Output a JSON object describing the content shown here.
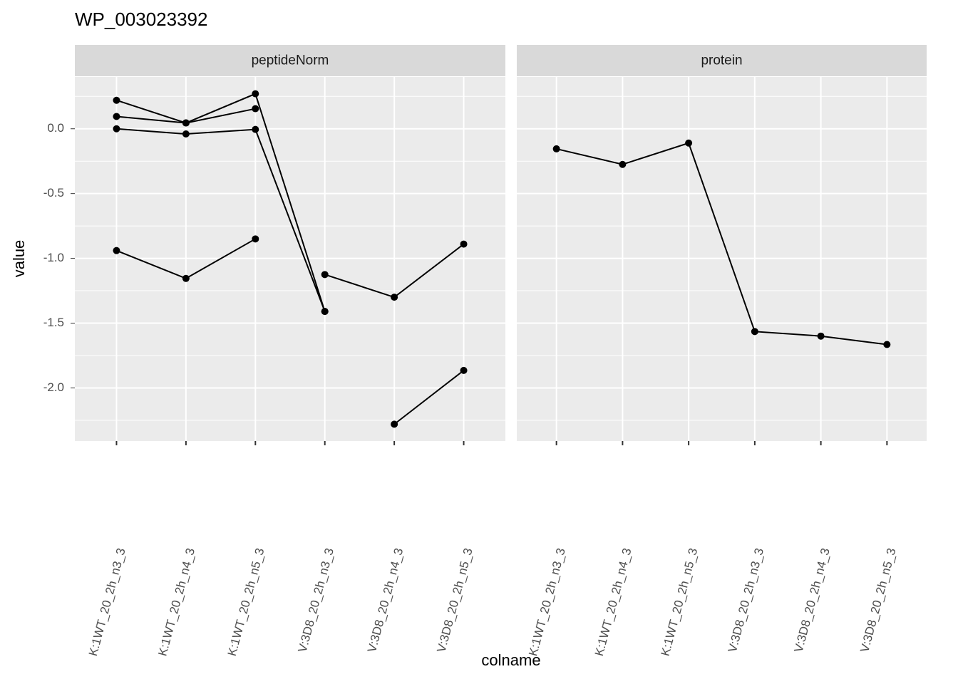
{
  "chart_data": {
    "type": "line",
    "title": "WP_003023392",
    "x_label": "colname",
    "y_label": "value",
    "categories": [
      "K:1WT_20_2h_n3_3",
      "K:1WT_20_2h_n4_3",
      "K:1WT_20_2h_n5_3",
      "V:3D8_20_2h_n3_3",
      "V:3D8_20_2h_n4_3",
      "V:3D8_20_2h_n5_3"
    ],
    "ylim": [
      -2.41,
      0.4
    ],
    "yticks": [
      {
        "value": -2,
        "label": "-2.0"
      },
      -1.5,
      {
        "value": -1,
        "label": "-1.0"
      },
      -0.5,
      {
        "value": 0,
        "label": "0.0"
      }
    ],
    "grid": true,
    "facets": [
      {
        "name": "peptideNorm",
        "series": [
          {
            "color": "#000000",
            "values": [
              0.22,
              0.045,
              0.27,
              -1.41,
              null,
              null
            ]
          },
          {
            "color": "#000000",
            "values": [
              0.095,
              0.045,
              0.155,
              null,
              null,
              null
            ]
          },
          {
            "color": "#000000",
            "values": [
              0.0,
              -0.04,
              -0.005,
              -1.41,
              null,
              null
            ]
          },
          {
            "color": "#000000",
            "values": [
              -0.94,
              -1.155,
              -0.85,
              null,
              null,
              null
            ]
          },
          {
            "color": "#000000",
            "values": [
              null,
              null,
              null,
              -1.125,
              -1.3,
              -0.89
            ]
          },
          {
            "color": "#000000",
            "values": [
              null,
              null,
              null,
              null,
              -2.28,
              -1.865
            ]
          }
        ]
      },
      {
        "name": "protein",
        "series": [
          {
            "color": "#000000",
            "values": [
              -0.155,
              -0.275,
              -0.11,
              -1.565,
              -1.6,
              -1.665
            ]
          }
        ]
      }
    ]
  }
}
